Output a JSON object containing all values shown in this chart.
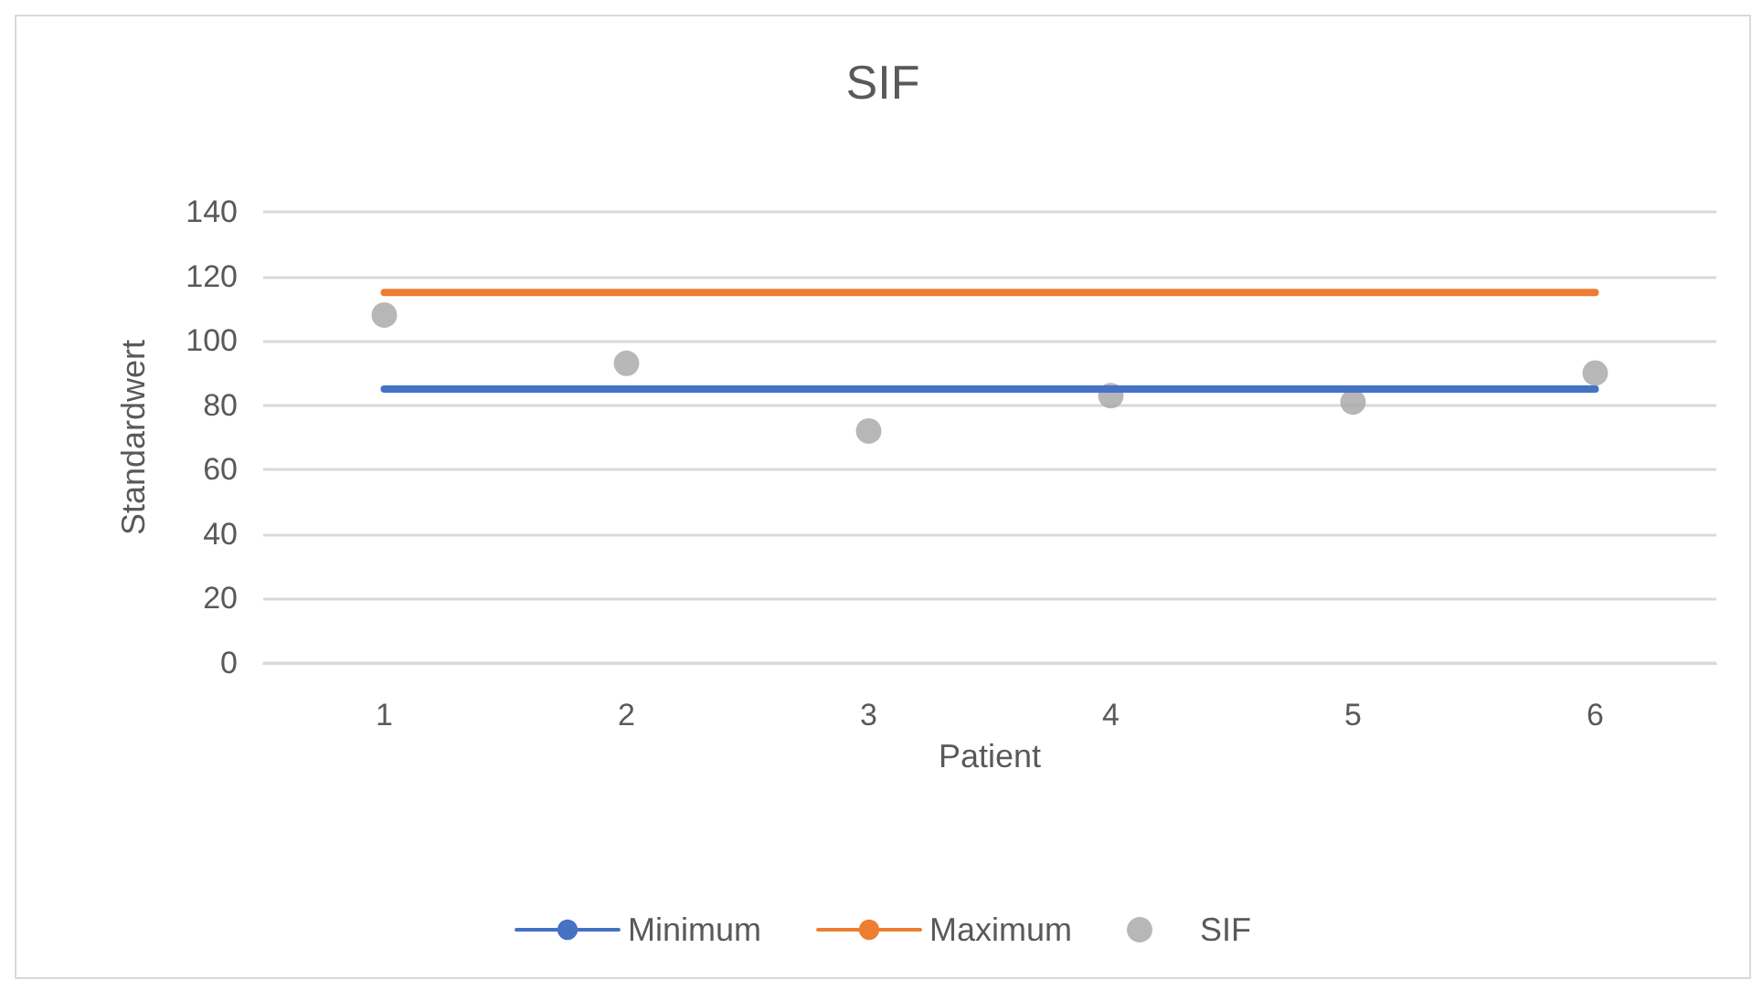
{
  "chart_data": {
    "type": "line",
    "title": "SIF",
    "xlabel": "Patient",
    "ylabel": "Standardwert",
    "categories": [
      "1",
      "2",
      "3",
      "4",
      "5",
      "6"
    ],
    "series": [
      {
        "name": "Minimum",
        "color": "#4472c4",
        "values": [
          85,
          85,
          85,
          85,
          85,
          85
        ]
      },
      {
        "name": "Maximum",
        "color": "#ed7d31",
        "values": [
          115,
          115,
          115,
          115,
          115,
          115
        ]
      },
      {
        "name": "SIF",
        "type": "scatter",
        "marker": "circle",
        "color": "#a5a5a5",
        "values": [
          108,
          93,
          72,
          83,
          81,
          90
        ]
      }
    ],
    "ylim": [
      0,
      140
    ],
    "yticks": [
      0,
      20,
      40,
      60,
      80,
      100,
      120,
      140
    ],
    "grid": "y",
    "legend": "bottom",
    "marker": "none",
    "line_style": "solid"
  }
}
